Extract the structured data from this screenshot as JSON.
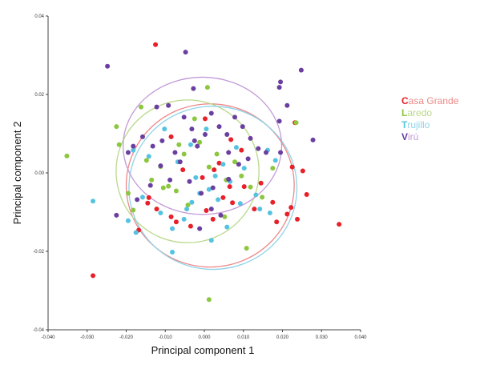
{
  "chart_data": {
    "type": "scatter",
    "xlabel": "Principal component 1",
    "ylabel": "Principal component 2",
    "xlim": [
      -0.04,
      0.04
    ],
    "ylim": [
      -0.04,
      0.04
    ],
    "xticks": [
      "-0.040",
      "-0.030",
      "-0.020",
      "-0.010",
      "0.000",
      "0.010",
      "0.020",
      "0.030",
      "0.040"
    ],
    "yticks": [
      "-0.04",
      "-0.02",
      "0.00",
      "0.02",
      "0.04"
    ],
    "legend_position": "right",
    "series": [
      {
        "name": "Casa Grande",
        "legend_lead": "C",
        "legend_rest": "asa Grande",
        "color": "#e8202a",
        "ellipse_color": "#ee8888",
        "ellipse": {
          "cx": 0.0015,
          "cy": -0.0032,
          "rx": 0.0215,
          "ry": 0.0208,
          "angle_deg": 0
        },
        "points": [
          [
            -0.0125,
            0.0327
          ],
          [
            -0.0285,
            -0.0262
          ],
          [
            0.0345,
            -0.0131
          ],
          [
            -0.0142,
            -0.0063
          ],
          [
            -0.0145,
            -0.0077
          ],
          [
            -0.0168,
            -0.0146
          ],
          [
            -0.0122,
            -0.0092
          ],
          [
            -0.0072,
            -0.0125
          ],
          [
            -0.0035,
            -0.0136
          ],
          [
            0.0005,
            -0.0096
          ],
          [
            0.0048,
            -0.0063
          ],
          [
            0.0072,
            -0.0076
          ],
          [
            0.0102,
            -0.0035
          ],
          [
            0.0145,
            -0.0026
          ],
          [
            0.0175,
            -0.0075
          ],
          [
            0.0222,
            -0.0088
          ],
          [
            0.0232,
            0.0128
          ],
          [
            0.0225,
            0.0015
          ],
          [
            0.0252,
            0.0005
          ],
          [
            0.0262,
            -0.0055
          ],
          [
            0.0212,
            -0.0105
          ],
          [
            0.0238,
            -0.0118
          ],
          [
            0.0185,
            -0.0125
          ],
          [
            0.0128,
            -0.0092
          ],
          [
            0.0065,
            -0.0035
          ],
          [
            0.0025,
            0.0008
          ],
          [
            -0.0005,
            -0.0012
          ],
          [
            0.0038,
            0.0025
          ],
          [
            0.0068,
            0.0085
          ],
          [
            -0.0055,
            0.0008
          ],
          [
            0.0022,
            -0.0118
          ],
          [
            -0.0085,
            -0.0112
          ],
          [
            0.0002,
            0.0138
          ],
          [
            -0.0085,
            0.0092
          ],
          [
            0.0095,
            0.0058
          ]
        ]
      },
      {
        "name": "Laredo",
        "legend_lead": "L",
        "legend_rest": "aredo",
        "color": "#8dc63f",
        "ellipse_color": "#bad88a",
        "ellipse": {
          "cx": -0.0043,
          "cy": 0.0004,
          "rx": 0.0183,
          "ry": 0.0182,
          "angle_deg": 0
        },
        "points": [
          [
            -0.0352,
            0.0043
          ],
          [
            0.0012,
            -0.0323
          ],
          [
            -0.0162,
            0.0168
          ],
          [
            -0.0225,
            0.0118
          ],
          [
            -0.0218,
            0.0072
          ],
          [
            -0.0195,
            -0.0052
          ],
          [
            -0.0182,
            -0.0095
          ],
          [
            -0.0148,
            0.0032
          ],
          [
            -0.0112,
            0.0016
          ],
          [
            -0.0092,
            -0.0034
          ],
          [
            -0.0072,
            -0.0046
          ],
          [
            -0.0052,
            0.0048
          ],
          [
            -0.0025,
            0.0138
          ],
          [
            -0.0012,
            0.0078
          ],
          [
            0.0008,
            0.0218
          ],
          [
            0.0032,
            0.0048
          ],
          [
            0.0056,
            -0.0018
          ],
          [
            0.0078,
            0.0028
          ],
          [
            0.0095,
            -0.0008
          ],
          [
            0.0118,
            -0.0036
          ],
          [
            0.0148,
            -0.0062
          ],
          [
            0.0175,
            0.0012
          ],
          [
            0.0235,
            0.0128
          ],
          [
            0.0108,
            -0.0192
          ],
          [
            0.0052,
            -0.0112
          ],
          [
            -0.0042,
            -0.0082
          ],
          [
            -0.0105,
            -0.0038
          ],
          [
            -0.0135,
            -0.0018
          ],
          [
            -0.0065,
            0.0072
          ],
          [
            0.0012,
            0.0015
          ]
        ]
      },
      {
        "name": "Trujillo",
        "legend_lead": "T",
        "legend_rest": "rujillo",
        "color": "#55c3e0",
        "ellipse_color": "#8fd3e8",
        "ellipse": {
          "cx": 0.0022,
          "cy": -0.0038,
          "rx": 0.0215,
          "ry": 0.0208,
          "angle_deg": 0
        },
        "points": [
          [
            -0.0285,
            -0.0072
          ],
          [
            -0.0195,
            -0.0122
          ],
          [
            -0.0175,
            -0.0152
          ],
          [
            -0.0158,
            -0.0062
          ],
          [
            -0.0142,
            0.0042
          ],
          [
            -0.0112,
            -0.0102
          ],
          [
            -0.0082,
            -0.0142
          ],
          [
            -0.0052,
            -0.0118
          ],
          [
            -0.0032,
            -0.0075
          ],
          [
            -0.0012,
            -0.0052
          ],
          [
            0.0012,
            -0.0042
          ],
          [
            0.0028,
            -0.0008
          ],
          [
            0.0048,
            0.0022
          ],
          [
            0.0066,
            -0.0022
          ],
          [
            0.0082,
            0.0065
          ],
          [
            0.0102,
            0.0012
          ],
          [
            0.0132,
            -0.0056
          ],
          [
            0.0162,
            0.0058
          ],
          [
            0.0182,
            0.0032
          ],
          [
            0.0168,
            -0.0102
          ],
          [
            0.0142,
            -0.0092
          ],
          [
            -0.0182,
            0.0058
          ],
          [
            -0.0102,
            0.0112
          ],
          [
            -0.0035,
            0.0072
          ],
          [
            -0.0068,
            0.0028
          ],
          [
            0.0005,
            0.0112
          ],
          [
            -0.0082,
            -0.0202
          ],
          [
            0.0018,
            -0.0172
          ],
          [
            0.0058,
            -0.0138
          ],
          [
            0.0092,
            -0.0078
          ],
          [
            -0.0022,
            -0.0012
          ],
          [
            0.0035,
            -0.0068
          ],
          [
            -0.0045,
            -0.0092
          ]
        ]
      },
      {
        "name": "Virú",
        "legend_lead": "V",
        "legend_rest": "irú",
        "color": "#6a3fa0",
        "ellipse_color": "#c39ad8",
        "ellipse": {
          "cx": -0.0005,
          "cy": 0.0069,
          "rx": 0.0203,
          "ry": 0.0175,
          "angle_deg": 0
        },
        "points": [
          [
            -0.0248,
            0.0272
          ],
          [
            -0.0048,
            0.0308
          ],
          [
            0.0195,
            0.0232
          ],
          [
            0.0192,
            0.0132
          ],
          [
            0.0192,
            0.0218
          ],
          [
            0.0278,
            0.0084
          ],
          [
            -0.0182,
            0.0068
          ],
          [
            -0.0225,
            -0.0108
          ],
          [
            -0.0195,
            0.0052
          ],
          [
            -0.0158,
            0.0092
          ],
          [
            -0.0132,
            0.0068
          ],
          [
            -0.0108,
            0.0082
          ],
          [
            -0.0092,
            0.0172
          ],
          [
            -0.0075,
            0.0052
          ],
          [
            -0.0052,
            0.0142
          ],
          [
            -0.0032,
            0.0112
          ],
          [
            -0.0018,
            0.0068
          ],
          [
            0.0002,
            0.0098
          ],
          [
            0.0018,
            0.0152
          ],
          [
            0.0038,
            0.0118
          ],
          [
            0.0058,
            0.0098
          ],
          [
            0.0078,
            0.0142
          ],
          [
            0.0098,
            0.0118
          ],
          [
            0.0118,
            0.0088
          ],
          [
            0.0138,
            0.0062
          ],
          [
            0.0158,
            0.0052
          ],
          [
            0.0112,
            0.0036
          ],
          [
            0.0088,
            0.0022
          ],
          [
            0.0062,
            -0.0016
          ],
          [
            0.0022,
            -0.0038
          ],
          [
            -0.0008,
            -0.0052
          ],
          [
            -0.0038,
            -0.0022
          ],
          [
            -0.0062,
            0.0028
          ],
          [
            -0.0088,
            -0.0018
          ],
          [
            -0.0112,
            0.0018
          ],
          [
            -0.0138,
            -0.0032
          ],
          [
            -0.0172,
            -0.0068
          ],
          [
            0.0042,
            -0.0108
          ],
          [
            0.0018,
            -0.0092
          ],
          [
            -0.0012,
            -0.0142
          ],
          [
            0.0195,
            0.0052
          ],
          [
            0.0248,
            0.0262
          ],
          [
            0.0212,
            0.0172
          ],
          [
            -0.0122,
            0.0168
          ],
          [
            -0.0028,
            0.0215
          ],
          [
            -0.0025,
            0.0082
          ],
          [
            0.0062,
            0.0052
          ]
        ]
      }
    ]
  }
}
